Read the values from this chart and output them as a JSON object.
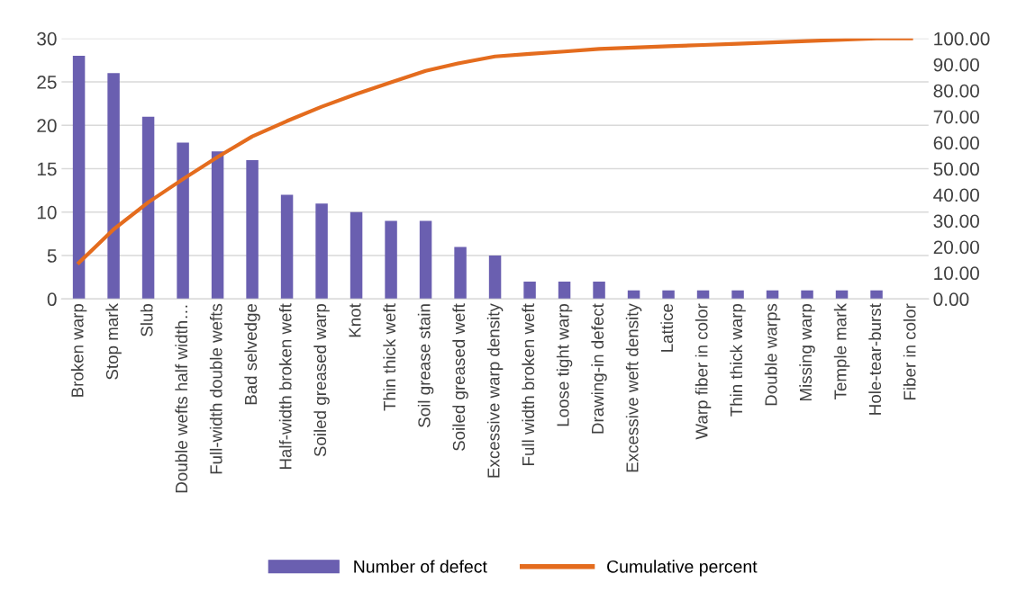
{
  "chart_data": {
    "type": "bar",
    "categories": [
      "Broken warp",
      "Stop mark",
      "Slub",
      "Double wefts half width…",
      "Full-width double wefts",
      "Bad selvedge",
      "Half-width broken weft",
      "Soiled greased warp",
      "Knot",
      "Thin thick weft",
      "Soil grease stain",
      "Soiled greased weft",
      "Excessive warp density",
      "Full width broken weft",
      "Loose tight warp",
      "Drawing-in defect",
      "Excessive weft density",
      "Lattice",
      "Warp fiber in color",
      "Thin thick warp",
      "Double warps",
      "Missing warp",
      "Temple mark",
      "Hole-tear-burst",
      "Fiber in color"
    ],
    "series": [
      {
        "name": "Number of defect",
        "color": "#6a5fb0",
        "values": [
          28,
          26,
          21,
          18,
          17,
          16,
          12,
          11,
          10,
          9,
          9,
          6,
          5,
          2,
          2,
          2,
          1,
          1,
          1,
          1,
          1,
          1,
          1,
          1,
          0
        ]
      },
      {
        "name": "Cumulative percent",
        "type": "line",
        "axis": "y2",
        "color": "#e46c1e",
        "values": [
          13.9,
          26.7,
          37.1,
          46.0,
          54.5,
          62.4,
          68.3,
          73.8,
          78.7,
          83.2,
          87.6,
          90.6,
          93.1,
          94.1,
          95.0,
          96.0,
          96.5,
          97.0,
          97.5,
          98.0,
          98.5,
          99.0,
          99.5,
          100,
          100
        ]
      }
    ],
    "ylim": [
      0,
      30
    ],
    "yticks": [
      0,
      5,
      10,
      15,
      20,
      25,
      30
    ],
    "y2lim": [
      0,
      100
    ],
    "y2ticks": [
      {
        "value": 0,
        "label": "0.00"
      },
      {
        "value": 10,
        "label": "10.00"
      },
      {
        "value": 20,
        "label": "20.00"
      },
      {
        "value": 30,
        "label": "30.00"
      },
      {
        "value": 40,
        "label": "40.00"
      },
      {
        "value": 50,
        "label": "50.00"
      },
      {
        "value": 60,
        "label": "60.00"
      },
      {
        "value": 70,
        "label": "70.00"
      },
      {
        "value": 80,
        "label": "80.00"
      },
      {
        "value": 90,
        "label": "90.00"
      },
      {
        "value": 100,
        "label": "100.00"
      }
    ],
    "grid": "y",
    "legend": "bottom",
    "marker": "none",
    "line_style": "solid"
  }
}
